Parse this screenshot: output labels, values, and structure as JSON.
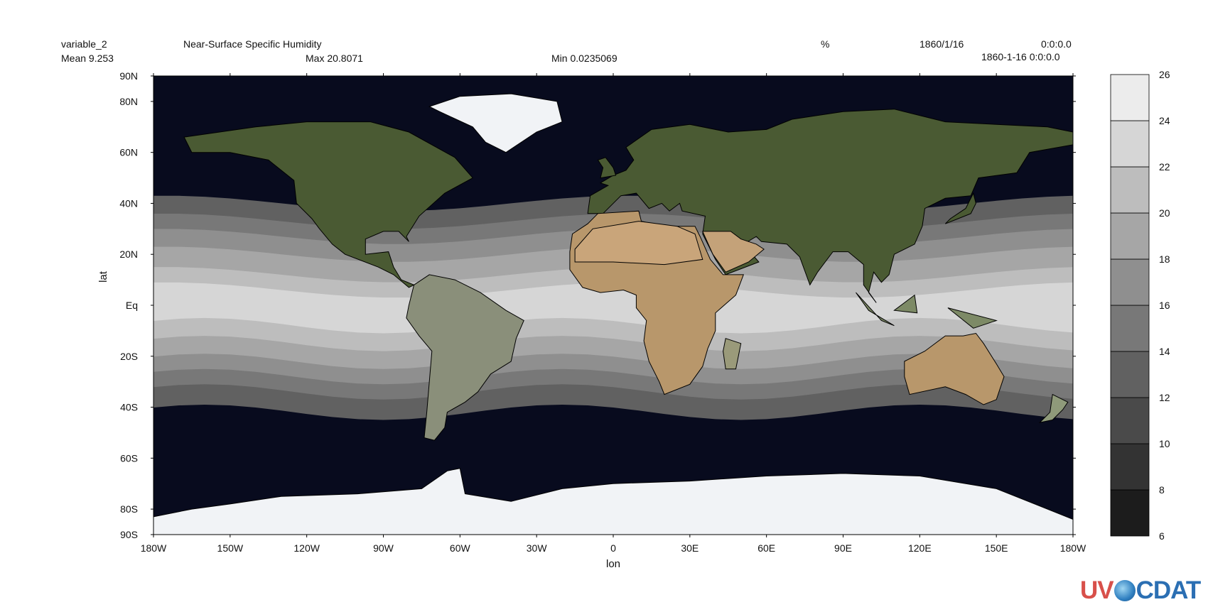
{
  "header": {
    "variable_name": "variable_2",
    "long_name": "Near-Surface Specific Humidity",
    "units": "%",
    "date": "1860/1/16",
    "time": "0:0:0.0",
    "mean": "Mean 9.253",
    "max": "Max 20.8071",
    "min": "Min 0.0235069",
    "datetime": "1860-1-16 0:0:0.0"
  },
  "axes": {
    "xlabel": "lon",
    "ylabel": "lat",
    "xticks": [
      {
        "value": -180,
        "label": "180W"
      },
      {
        "value": -150,
        "label": "150W"
      },
      {
        "value": -120,
        "label": "120W"
      },
      {
        "value": -90,
        "label": "90W"
      },
      {
        "value": -60,
        "label": "60W"
      },
      {
        "value": -30,
        "label": "30W"
      },
      {
        "value": 0,
        "label": "0"
      },
      {
        "value": 30,
        "label": "30E"
      },
      {
        "value": 60,
        "label": "60E"
      },
      {
        "value": 90,
        "label": "90E"
      },
      {
        "value": 120,
        "label": "120E"
      },
      {
        "value": 150,
        "label": "150E"
      },
      {
        "value": 180,
        "label": "180W"
      }
    ],
    "yticks": [
      {
        "value": 90,
        "label": "90N"
      },
      {
        "value": 80,
        "label": "80N"
      },
      {
        "value": 60,
        "label": "60N"
      },
      {
        "value": 40,
        "label": "40N"
      },
      {
        "value": 20,
        "label": "20N"
      },
      {
        "value": 0,
        "label": "Eq"
      },
      {
        "value": -20,
        "label": "20S"
      },
      {
        "value": -40,
        "label": "40S"
      },
      {
        "value": -60,
        "label": "60S"
      },
      {
        "value": -80,
        "label": "80S"
      },
      {
        "value": -90,
        "label": "90S"
      }
    ]
  },
  "colorbar": {
    "levels": [
      6,
      8,
      10,
      12,
      14,
      16,
      18,
      20,
      22,
      24,
      26
    ],
    "colors": [
      "#1c1c1c",
      "#333333",
      "#4a4a4a",
      "#616161",
      "#787878",
      "#8f8f8f",
      "#a6a6a6",
      "#bdbdbd",
      "#d6d6d6",
      "#ececec"
    ]
  },
  "background": {
    "ocean_dark": "#080b1e",
    "land_color": "#4a5a33",
    "desert_color": "#b8976b",
    "ice_color": "#f1f3f6"
  },
  "logo": {
    "part1": "UV",
    "part2": "CDAT",
    "color1": "#d8504a",
    "color2": "#2b6fb3"
  }
}
